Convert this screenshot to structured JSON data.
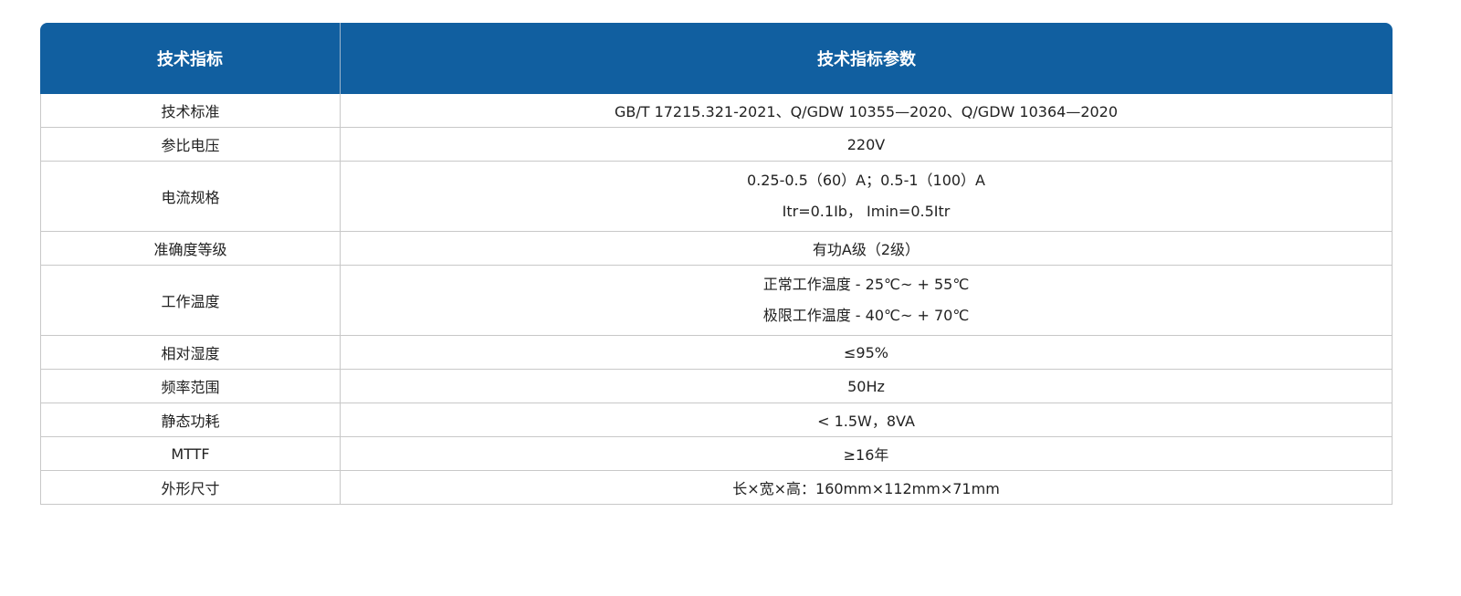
{
  "header": {
    "col1": "技术指标",
    "col2": "技术指标参数"
  },
  "rows": [
    {
      "name": "技术标准",
      "values": [
        "GB/T 17215.321-2021、Q/GDW 10355—2020、Q/GDW 10364—2020"
      ]
    },
    {
      "name": "参比电压",
      "values": [
        "220V"
      ]
    },
    {
      "name": "电流规格",
      "values": [
        "0.25-0.5（60）A；0.5-1（100）A",
        "Itr=0.1Ib， Imin=0.5Itr"
      ]
    },
    {
      "name": "准确度等级",
      "values": [
        "有功A级（2级）"
      ]
    },
    {
      "name": "工作温度",
      "values": [
        "正常工作温度 - 25℃~ + 55℃",
        "极限工作温度 - 40℃~ + 70℃"
      ]
    },
    {
      "name": "相对湿度",
      "values": [
        "≤95%"
      ]
    },
    {
      "name": "频率范围",
      "values": [
        "50Hz"
      ]
    },
    {
      "name": "静态功耗",
      "values": [
        "< 1.5W，8VA"
      ]
    },
    {
      "name": "MTTF",
      "values": [
        "≥16年"
      ]
    },
    {
      "name": "外形尺寸",
      "values": [
        "长×宽×高：160mm×112mm×71mm"
      ]
    }
  ]
}
